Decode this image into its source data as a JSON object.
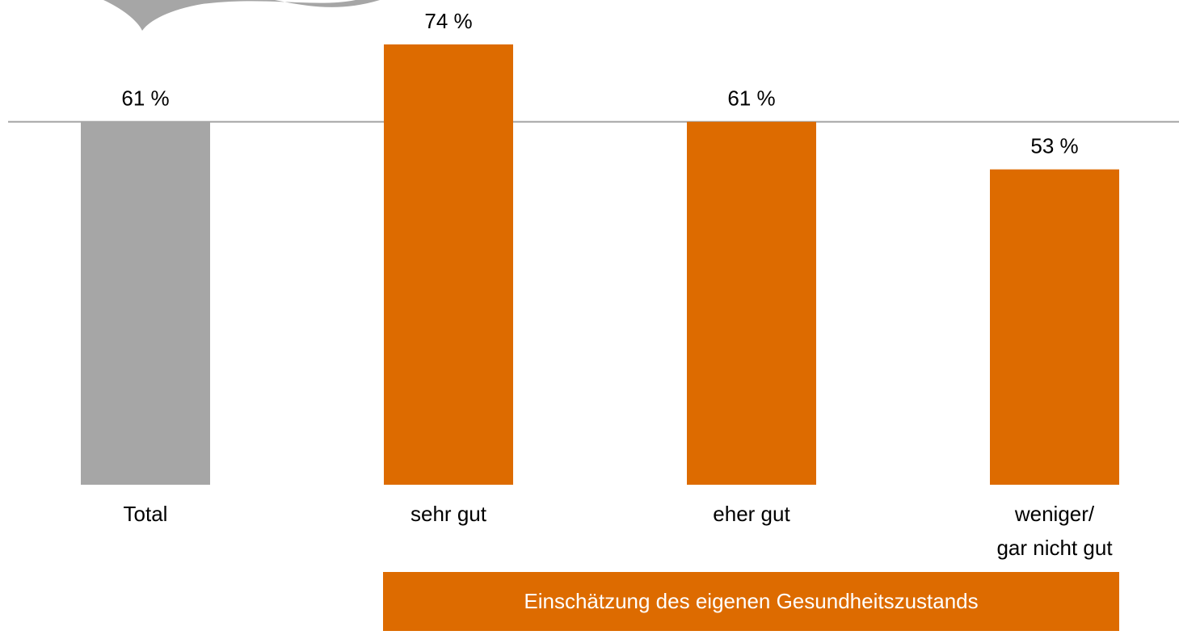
{
  "chart_data": {
    "type": "bar",
    "categories": [
      "Total",
      "sehr gut",
      "eher gut",
      "weniger/\ngar nicht gut"
    ],
    "values": [
      61,
      74,
      61,
      53
    ],
    "value_labels": [
      "61 %",
      "74 %",
      "61 %",
      "53 %"
    ],
    "colors": [
      "#a6a6a6",
      "#dd6b00",
      "#dd6b00",
      "#dd6b00"
    ],
    "group_label": "Einschätzung des eigenen Gesundheitszustands",
    "group_color": "#dd6b00"
  }
}
